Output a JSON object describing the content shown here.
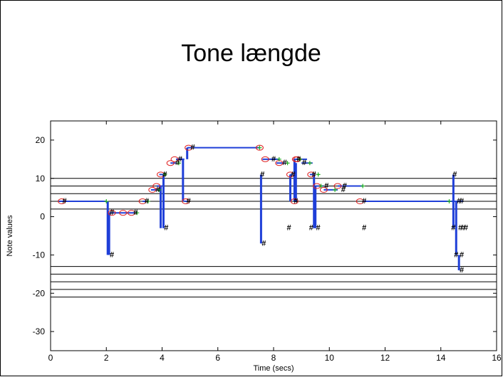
{
  "slide": {
    "title": "Tone længde"
  },
  "chart_data": {
    "type": "line",
    "title": "",
    "xlabel": "Time (secs)",
    "ylabel": "Note values",
    "xlim": [
      0,
      16
    ],
    "ylim": [
      -35,
      25
    ],
    "xticks": [
      0,
      2,
      4,
      6,
      8,
      10,
      12,
      14,
      16
    ],
    "yticks": [
      -30,
      -20,
      -10,
      0,
      10,
      20
    ],
    "staff_lines": [
      10,
      8,
      6,
      4,
      2,
      -13,
      -15,
      -17,
      -19,
      -21
    ],
    "grid": false,
    "colors": {
      "segment": "#1f3fd8",
      "circle": "#e02020",
      "plus": "#20b020",
      "hash": "#000000"
    },
    "series": [
      {
        "label_kind": "note segments",
        "segments": [
          [
            0.3,
            4,
            2.0,
            4
          ],
          [
            2.1,
            1,
            3.1,
            1
          ],
          [
            3.3,
            4,
            3.5,
            4
          ],
          [
            3.6,
            7,
            3.9,
            7
          ],
          [
            3.8,
            8,
            4.0,
            8
          ],
          [
            3.9,
            11,
            4.1,
            11
          ],
          [
            4.3,
            14,
            4.5,
            14
          ],
          [
            4.5,
            15,
            4.8,
            15
          ],
          [
            4.8,
            4,
            4.9,
            4
          ],
          [
            4.9,
            18,
            7.5,
            18
          ],
          [
            7.6,
            15,
            8.2,
            15
          ],
          [
            8.1,
            14,
            8.4,
            14
          ],
          [
            8.6,
            11,
            8.7,
            11
          ],
          [
            8.7,
            15,
            9.2,
            15
          ],
          [
            9.0,
            14,
            9.4,
            14
          ],
          [
            9.3,
            11,
            9.5,
            11
          ],
          [
            9.5,
            8,
            9.8,
            8
          ],
          [
            9.8,
            7,
            10.3,
            7
          ],
          [
            10.3,
            8,
            11.2,
            8
          ],
          [
            11.2,
            4,
            14.5,
            4
          ],
          [
            14.5,
            4,
            14.8,
            4
          ]
        ],
        "jumps": [
          [
            2.05,
            4,
            2.05,
            -10
          ],
          [
            2.1,
            -10,
            2.1,
            1
          ],
          [
            3.95,
            8,
            3.95,
            -3
          ],
          [
            4.05,
            11,
            4.05,
            -3
          ],
          [
            4.75,
            15,
            4.75,
            4
          ],
          [
            4.9,
            15,
            4.9,
            18
          ],
          [
            7.55,
            11,
            7.55,
            -7
          ],
          [
            8.6,
            11,
            8.6,
            4
          ],
          [
            8.75,
            15,
            8.75,
            4
          ],
          [
            8.8,
            14,
            8.8,
            4
          ],
          [
            9.45,
            11,
            9.45,
            -3
          ],
          [
            9.5,
            8,
            9.5,
            -3
          ],
          [
            14.45,
            11,
            14.45,
            -3
          ],
          [
            14.55,
            4,
            14.55,
            -10
          ],
          [
            14.65,
            -10,
            14.65,
            -14
          ]
        ],
        "circles": [
          [
            0.4,
            4
          ],
          [
            2.2,
            1
          ],
          [
            2.6,
            1
          ],
          [
            2.9,
            1
          ],
          [
            3.3,
            4
          ],
          [
            3.65,
            7
          ],
          [
            3.8,
            8
          ],
          [
            3.95,
            11
          ],
          [
            4.3,
            14
          ],
          [
            4.45,
            15
          ],
          [
            4.85,
            4
          ],
          [
            4.95,
            18
          ],
          [
            7.5,
            18
          ],
          [
            7.7,
            15
          ],
          [
            8.2,
            14
          ],
          [
            8.6,
            11
          ],
          [
            8.75,
            4
          ],
          [
            8.8,
            15
          ],
          [
            8.85,
            15
          ],
          [
            9.35,
            11
          ],
          [
            9.55,
            8
          ],
          [
            9.8,
            7
          ],
          [
            10.3,
            8
          ],
          [
            11.1,
            4
          ]
        ],
        "plus_marks": [
          [
            2.0,
            4
          ],
          [
            3.1,
            1
          ],
          [
            3.5,
            4
          ],
          [
            3.9,
            7
          ],
          [
            4.1,
            11
          ],
          [
            4.6,
            14
          ],
          [
            7.5,
            18
          ],
          [
            8.2,
            15
          ],
          [
            8.5,
            14
          ],
          [
            8.95,
            15
          ],
          [
            9.3,
            14
          ],
          [
            9.6,
            11
          ],
          [
            9.7,
            8
          ],
          [
            10.2,
            7
          ],
          [
            11.2,
            8
          ],
          [
            14.3,
            4
          ]
        ],
        "hash_marks": [
          [
            0.5,
            4
          ],
          [
            2.2,
            -10
          ],
          [
            2.2,
            1
          ],
          [
            3.05,
            1
          ],
          [
            3.45,
            4
          ],
          [
            3.85,
            7
          ],
          [
            4.1,
            11
          ],
          [
            4.15,
            -3
          ],
          [
            4.55,
            14
          ],
          [
            4.65,
            15
          ],
          [
            4.95,
            4
          ],
          [
            5.1,
            18
          ],
          [
            7.6,
            11
          ],
          [
            7.65,
            -7
          ],
          [
            8.0,
            15
          ],
          [
            8.4,
            14
          ],
          [
            8.55,
            -3
          ],
          [
            8.7,
            11
          ],
          [
            8.8,
            4
          ],
          [
            8.9,
            15
          ],
          [
            9.1,
            14
          ],
          [
            9.35,
            -3
          ],
          [
            9.45,
            11
          ],
          [
            9.6,
            -3
          ],
          [
            9.9,
            8
          ],
          [
            10.5,
            7
          ],
          [
            10.55,
            8
          ],
          [
            11.25,
            4
          ],
          [
            11.25,
            -3
          ],
          [
            14.5,
            11
          ],
          [
            14.45,
            -3
          ],
          [
            14.55,
            -10
          ],
          [
            14.75,
            -10
          ],
          [
            14.65,
            4
          ],
          [
            14.75,
            4
          ],
          [
            14.7,
            -3
          ],
          [
            14.8,
            -3
          ],
          [
            14.9,
            -3
          ],
          [
            14.75,
            -14
          ]
        ]
      }
    ]
  }
}
